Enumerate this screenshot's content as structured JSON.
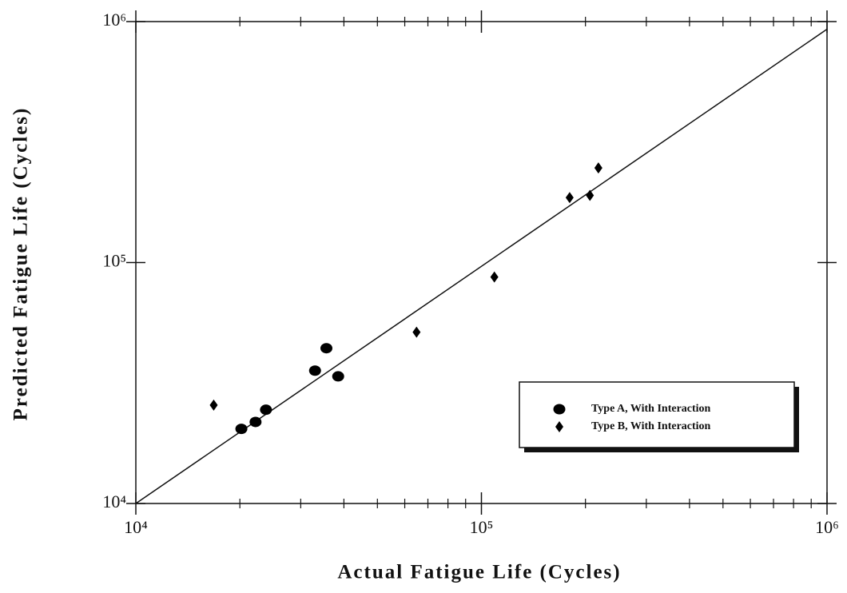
{
  "chart_data": {
    "type": "scatter",
    "xlabel": "Actual Fatigue Life (Cycles)",
    "ylabel": "Predicted Fatigue Life (Cycles)",
    "log_x": true,
    "log_y": true,
    "minor_ticks": true,
    "xlim": [
      10000,
      1000000
    ],
    "ylim": [
      10000,
      1000000
    ],
    "xticks": [
      {
        "value": 10000,
        "label": "10⁴"
      },
      {
        "value": 100000,
        "label": "10⁵"
      },
      {
        "value": 1000000,
        "label": "10⁶"
      }
    ],
    "yticks": [
      {
        "value": 10000,
        "label": "10⁴"
      },
      {
        "value": 100000,
        "label": "10⁵"
      },
      {
        "value": 1000000,
        "label": "10⁶"
      }
    ],
    "series": [
      {
        "name": "Type A, With Interaction",
        "color": "#000000",
        "marker": "circle",
        "x": [
          20200,
          22200,
          23800,
          33000,
          35600,
          38500
        ],
        "values": [
          20400,
          21800,
          24500,
          35600,
          44100,
          33700
        ]
      },
      {
        "name": "Type B, With Interaction",
        "color": "#000000",
        "marker": "diamond",
        "x": [
          16800,
          64900,
          109000,
          180000,
          206000,
          218000
        ],
        "values": [
          25600,
          51400,
          87100,
          186000,
          190000,
          247000
        ]
      }
    ],
    "reference_line": {
      "x": [
        10000,
        1000000
      ],
      "values": [
        10000,
        930000
      ]
    },
    "legend": "lower right"
  }
}
